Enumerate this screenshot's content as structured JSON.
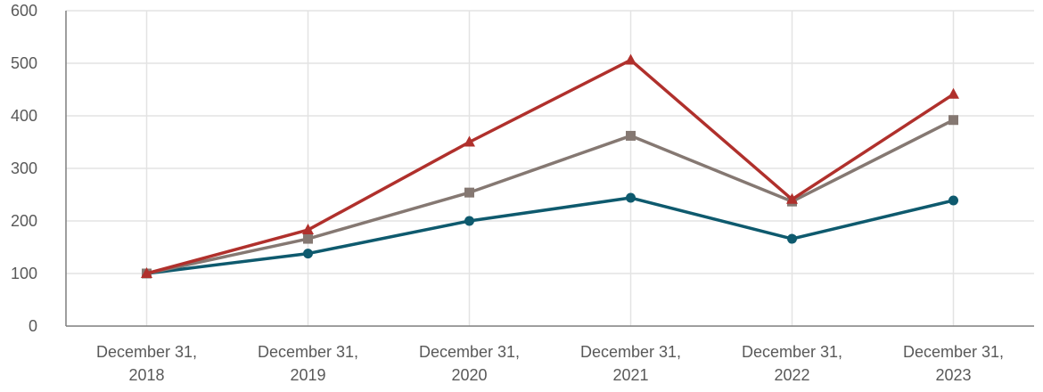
{
  "chart_data": {
    "type": "line",
    "title": "",
    "xlabel": "",
    "ylabel": "",
    "ylim": [
      0,
      600
    ],
    "yticks": [
      "0",
      "100",
      "200",
      "300",
      "400",
      "500",
      "600"
    ],
    "categories": [
      [
        "December 31,",
        "2018"
      ],
      [
        "December 31,",
        "2019"
      ],
      [
        "December 31,",
        "2020"
      ],
      [
        "December 31,",
        "2021"
      ],
      [
        "December 31,",
        "2022"
      ],
      [
        "December 31,",
        "2023"
      ]
    ],
    "grid": true,
    "series": [
      {
        "name": "Series 1",
        "color": "#0e5a6e",
        "marker": "circle",
        "values": [
          100,
          138,
          200,
          244,
          166,
          239
        ]
      },
      {
        "name": "Series 2",
        "color": "#857872",
        "marker": "square",
        "values": [
          100,
          166,
          254,
          362,
          237,
          392
        ]
      },
      {
        "name": "Series 3",
        "color": "#b0302c",
        "marker": "triangle",
        "values": [
          100,
          183,
          350,
          506,
          241,
          441
        ]
      }
    ]
  }
}
